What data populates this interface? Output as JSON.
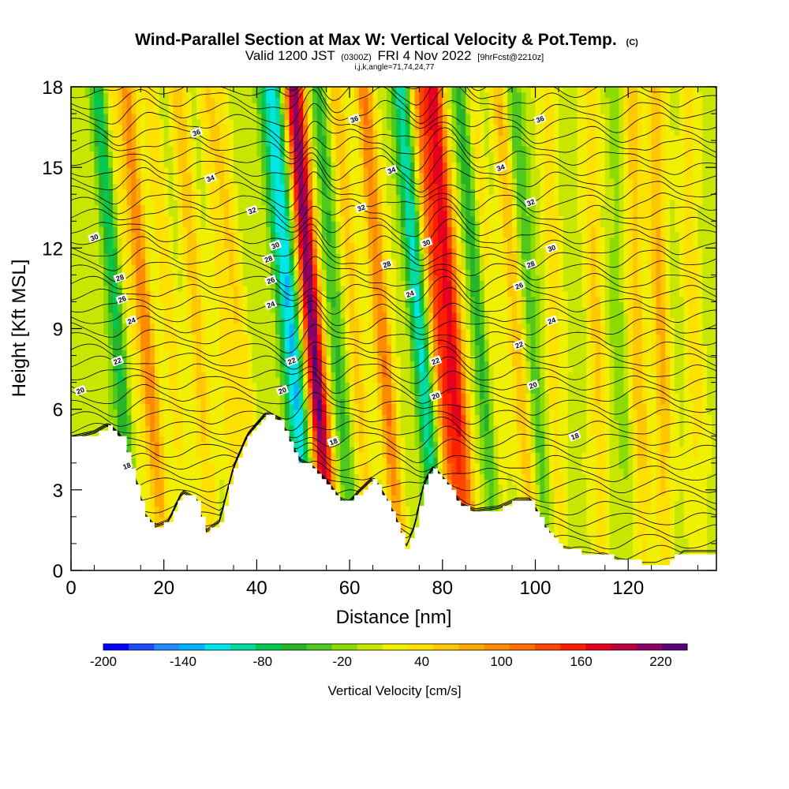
{
  "chart_data": {
    "type": "heatmap",
    "title": "Wind-Parallel Section at Max W: Vertical Velocity & Pot.Temp.",
    "title_mark": "(C)",
    "subtitle": {
      "valid": "Valid 1200 JST",
      "utc": "(0300Z)",
      "date": "FRI 4 Nov 2022",
      "fcst": "[9hrFcst@2210z]"
    },
    "section_info": "i,j,k,angle=71,74,24,77",
    "xlabel": "Distance [nm]",
    "ylabel": "Height [Kft MSL]",
    "xlim": [
      0,
      139
    ],
    "ylim": [
      0,
      18
    ],
    "x_ticks": [
      "0",
      "20",
      "40",
      "60",
      "80",
      "100",
      "120"
    ],
    "y_ticks": [
      "0",
      "3",
      "6",
      "9",
      "12",
      "15",
      "18"
    ],
    "colorbar": {
      "label": "Vertical Velocity [cm/s]",
      "ticks": [
        "-200",
        "-140",
        "-80",
        "-20",
        "40",
        "100",
        "160",
        "220"
      ],
      "levels": [
        -200,
        -180,
        -160,
        -140,
        -120,
        -100,
        -80,
        -60,
        -40,
        -20,
        0,
        20,
        40,
        60,
        80,
        100,
        120,
        140,
        160,
        180,
        200,
        220,
        240
      ],
      "colors": [
        "#0000ff",
        "#1e4bff",
        "#1e8cff",
        "#00b4ff",
        "#00e6e6",
        "#00dca0",
        "#00c850",
        "#28b428",
        "#50c81e",
        "#8cdc00",
        "#c8e600",
        "#f0f000",
        "#ffe100",
        "#ffc800",
        "#ffaa00",
        "#ff8c00",
        "#ff6e00",
        "#ff4600",
        "#ff1e00",
        "#e6001e",
        "#be003c",
        "#8c0064",
        "#5a0078"
      ]
    },
    "terrain_kft": [
      [
        0,
        4.9
      ],
      [
        5,
        5.1
      ],
      [
        8,
        5.4
      ],
      [
        11,
        4.9
      ],
      [
        14,
        3.3
      ],
      [
        16,
        2.0
      ],
      [
        18,
        1.6
      ],
      [
        21,
        1.8
      ],
      [
        24,
        2.9
      ],
      [
        27,
        2.6
      ],
      [
        29,
        1.4
      ],
      [
        32,
        1.8
      ],
      [
        35,
        3.8
      ],
      [
        38,
        5.0
      ],
      [
        42,
        5.8
      ],
      [
        45,
        5.6
      ],
      [
        49,
        4.1
      ],
      [
        52,
        3.8
      ],
      [
        55,
        3.3
      ],
      [
        58,
        2.6
      ],
      [
        60,
        2.5
      ],
      [
        62,
        2.9
      ],
      [
        65,
        3.4
      ],
      [
        67,
        2.9
      ],
      [
        70,
        1.9
      ],
      [
        72,
        0.8
      ],
      [
        74,
        1.6
      ],
      [
        76,
        3.2
      ],
      [
        78,
        3.8
      ],
      [
        81,
        3.2
      ],
      [
        84,
        2.4
      ],
      [
        87,
        2.2
      ],
      [
        92,
        2.3
      ],
      [
        96,
        2.6
      ],
      [
        99,
        2.6
      ],
      [
        102,
        1.6
      ],
      [
        105,
        0.9
      ],
      [
        110,
        0.7
      ],
      [
        115,
        0.6
      ],
      [
        118,
        0.4
      ],
      [
        123,
        0.3
      ],
      [
        128,
        0.3
      ],
      [
        132,
        0.7
      ],
      [
        139,
        0.7
      ]
    ],
    "updraft_cores": [
      {
        "x": 12,
        "w": 40
      },
      {
        "x": 16,
        "w": 100
      },
      {
        "x": 21,
        "w": 40
      },
      {
        "x": 27,
        "w": 60
      },
      {
        "x": 33,
        "w": 40
      },
      {
        "x": 36,
        "w": 40
      },
      {
        "x": 52,
        "w": 230
      },
      {
        "x": 61,
        "w": 60
      },
      {
        "x": 67,
        "w": 110
      },
      {
        "x": 79,
        "w": 110
      },
      {
        "x": 82,
        "w": 170
      },
      {
        "x": 90,
        "w": 40
      },
      {
        "x": 96,
        "w": 70
      },
      {
        "x": 104,
        "w": 40
      },
      {
        "x": 113,
        "w": 50
      },
      {
        "x": 122,
        "w": 60
      },
      {
        "x": 127,
        "w": 70
      },
      {
        "x": 134,
        "w": 40
      }
    ],
    "downdraft_cores": [
      {
        "x": 10,
        "w": -90
      },
      {
        "x": 46,
        "w": -70
      },
      {
        "x": 48,
        "w": -100
      },
      {
        "x": 57,
        "w": -60
      },
      {
        "x": 75,
        "w": -110
      },
      {
        "x": 88,
        "w": -70
      },
      {
        "x": 99,
        "w": -50
      },
      {
        "x": 118,
        "w": -20
      }
    ],
    "theta_contours": [
      {
        "value": "18",
        "x": 56.5,
        "y": 4.8
      },
      {
        "value": "18",
        "x": 108.5,
        "y": 5.0
      },
      {
        "value": "18",
        "x": 12,
        "y": 3.9
      },
      {
        "value": "20",
        "x": 2,
        "y": 6.7
      },
      {
        "value": "20",
        "x": 45.5,
        "y": 6.7
      },
      {
        "value": "20",
        "x": 78.5,
        "y": 6.5
      },
      {
        "value": "20",
        "x": 99.5,
        "y": 6.9
      },
      {
        "value": "22",
        "x": 10,
        "y": 7.8
      },
      {
        "value": "22",
        "x": 47.5,
        "y": 7.8
      },
      {
        "value": "22",
        "x": 78.5,
        "y": 7.8
      },
      {
        "value": "22",
        "x": 96.5,
        "y": 8.4
      },
      {
        "value": "24",
        "x": 13,
        "y": 9.3
      },
      {
        "value": "24",
        "x": 43,
        "y": 9.9
      },
      {
        "value": "24",
        "x": 73,
        "y": 10.3
      },
      {
        "value": "24",
        "x": 103.5,
        "y": 9.3
      },
      {
        "value": "26",
        "x": 11,
        "y": 10.1
      },
      {
        "value": "26",
        "x": 43,
        "y": 10.8
      },
      {
        "value": "26",
        "x": 96.5,
        "y": 10.6
      },
      {
        "value": "28",
        "x": 10.5,
        "y": 10.9
      },
      {
        "value": "28",
        "x": 42.5,
        "y": 11.6
      },
      {
        "value": "28",
        "x": 68,
        "y": 11.4
      },
      {
        "value": "28",
        "x": 99,
        "y": 11.4
      },
      {
        "value": "30",
        "x": 5,
        "y": 12.4
      },
      {
        "value": "30",
        "x": 44,
        "y": 12.1
      },
      {
        "value": "30",
        "x": 76.5,
        "y": 12.2
      },
      {
        "value": "30",
        "x": 103.5,
        "y": 12.0
      },
      {
        "value": "32",
        "x": 39,
        "y": 13.4
      },
      {
        "value": "32",
        "x": 62.5,
        "y": 13.5
      },
      {
        "value": "32",
        "x": 99,
        "y": 13.7
      },
      {
        "value": "34",
        "x": 30,
        "y": 14.6
      },
      {
        "value": "34",
        "x": 69,
        "y": 14.9
      },
      {
        "value": "34",
        "x": 92.5,
        "y": 15.0
      },
      {
        "value": "36",
        "x": 27,
        "y": 16.3
      },
      {
        "value": "36",
        "x": 61,
        "y": 16.8
      },
      {
        "value": "36",
        "x": 101,
        "y": 16.8
      }
    ]
  }
}
